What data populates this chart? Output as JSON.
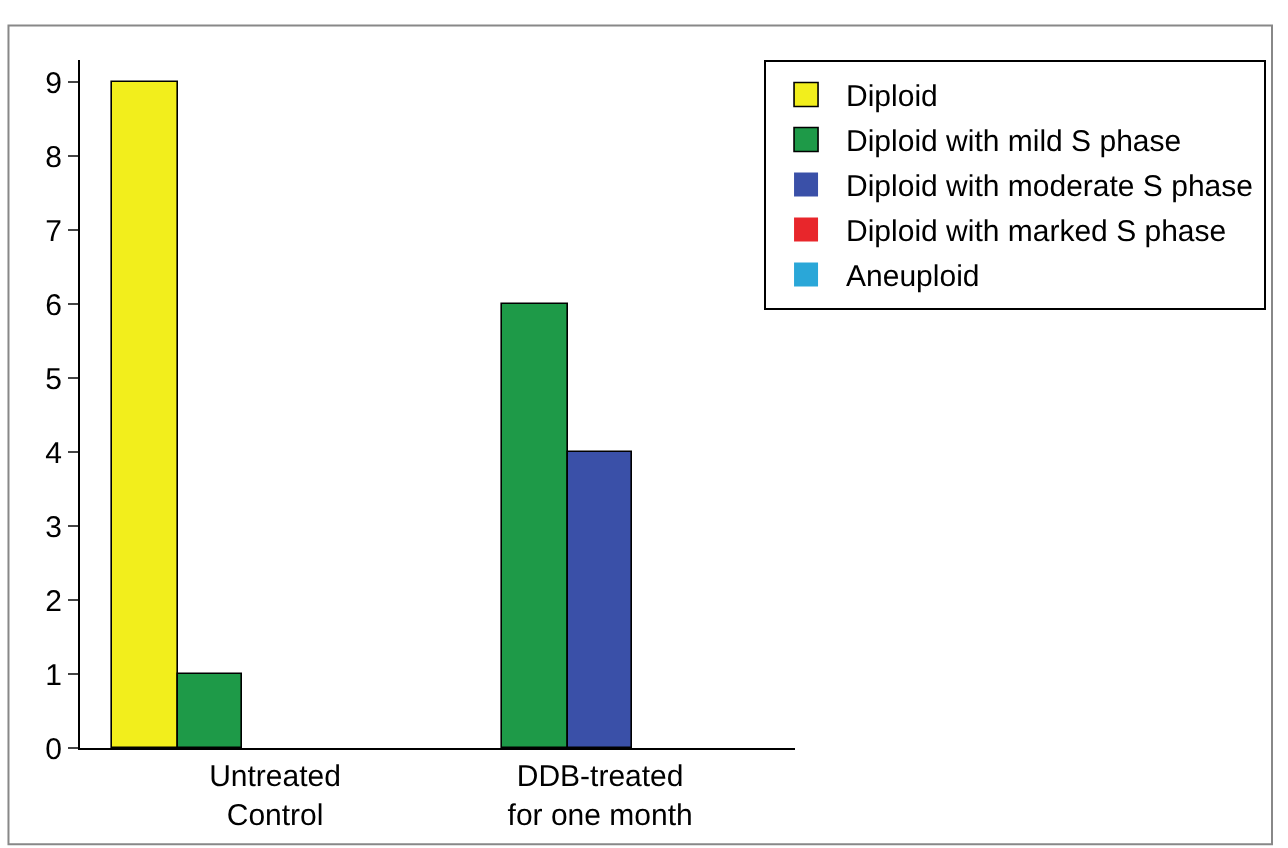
{
  "chart_data": {
    "type": "bar",
    "categories": [
      "Untreated\nControl",
      "DDB-treated\nfor one month"
    ],
    "series": [
      {
        "name": "Diploid",
        "color": "#f2ee1c",
        "values": [
          9,
          0
        ]
      },
      {
        "name": "Diploid with mild S phase",
        "color": "#1e9a48",
        "values": [
          1,
          6
        ]
      },
      {
        "name": "Diploid with moderate S phase",
        "color": "#3a50a8",
        "values": [
          0,
          4
        ]
      },
      {
        "name": "Diploid with marked S phase",
        "color": "#e8262b",
        "values": [
          0,
          0
        ]
      },
      {
        "name": "Aneuploid",
        "color": "#2aa7d8",
        "values": [
          0,
          0
        ]
      }
    ],
    "ylim": [
      0,
      9.3
    ],
    "yticks": [
      0,
      1,
      2,
      3,
      4,
      5,
      6,
      7,
      8,
      9
    ],
    "legend": "top right"
  }
}
